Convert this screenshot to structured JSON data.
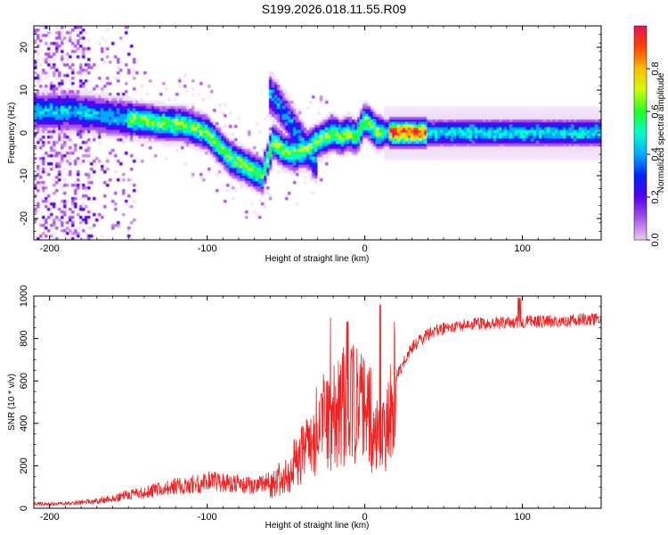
{
  "title": "S199.2026.018.11.55.R09",
  "colors": {
    "snr_line": "#ee2222",
    "axes": "#000000"
  },
  "colormap": [
    "#e6ccf2",
    "#aa55e6",
    "#5500ee",
    "#0022ff",
    "#00aaff",
    "#00ffcc",
    "#22ff22",
    "#ccff00",
    "#ffbb00",
    "#ff4400",
    "#ee1155"
  ],
  "chart_data": [
    {
      "type": "heatmap",
      "xlabel": "Height of straight line (km)",
      "ylabel": "Frequency (Hz)",
      "xlim": [
        -210,
        150
      ],
      "ylim": [
        -25,
        25
      ],
      "xticks": [
        -200,
        -100,
        0,
        100
      ],
      "yticks": [
        -20,
        -10,
        0,
        10,
        20
      ],
      "colorbar": {
        "label": "Normalized spectral amplitude",
        "range": [
          0,
          1
        ],
        "ticks": [
          "0.0",
          "0.2",
          "0.4",
          "0.6",
          "0.8"
        ]
      },
      "ridge": [
        [
          -185,
          5
        ],
        [
          -175,
          4.5
        ],
        [
          -165,
          4
        ],
        [
          -155,
          3.5
        ],
        [
          -145,
          3
        ],
        [
          -135,
          2.5
        ],
        [
          -125,
          2
        ],
        [
          -115,
          2
        ],
        [
          -108,
          1
        ],
        [
          -100,
          0
        ],
        [
          -95,
          -2
        ],
        [
          -90,
          -4
        ],
        [
          -85,
          -6
        ],
        [
          -80,
          -7
        ],
        [
          -75,
          -8
        ],
        [
          -70,
          -9
        ],
        [
          -65,
          -10
        ],
        [
          -58,
          -2
        ],
        [
          -52,
          -4
        ],
        [
          -45,
          -5
        ],
        [
          -38,
          -4
        ],
        [
          -30,
          -2
        ],
        [
          -25,
          -1
        ],
        [
          -20,
          0
        ],
        [
          -15,
          -1
        ],
        [
          -10,
          0
        ],
        [
          -5,
          -1
        ],
        [
          0,
          3
        ],
        [
          3,
          2
        ],
        [
          8,
          0
        ],
        [
          15,
          0
        ],
        [
          30,
          0
        ],
        [
          50,
          0
        ],
        [
          70,
          0
        ],
        [
          90,
          0
        ],
        [
          110,
          0
        ],
        [
          130,
          0
        ],
        [
          150,
          0
        ]
      ],
      "branch": [
        [
          -60,
          9
        ],
        [
          -55,
          7
        ],
        [
          -50,
          4
        ],
        [
          -45,
          1
        ],
        [
          -40,
          -2
        ],
        [
          -35,
          -5
        ],
        [
          -30,
          -7
        ]
      ]
    },
    {
      "type": "line",
      "xlabel": "Height of straight line (km)",
      "ylabel": "SNR (10 * v/v)",
      "xlim": [
        -210,
        150
      ],
      "ylim": [
        0,
        1000
      ],
      "xticks": [
        -200,
        -100,
        0,
        100
      ],
      "yticks": [
        0,
        200,
        400,
        600,
        800,
        1000
      ],
      "series": [
        {
          "x": [
            -210,
            -200,
            -190,
            -180,
            -170,
            -160,
            -150,
            -140,
            -130,
            -120,
            -110,
            -100,
            -90,
            -80,
            -70,
            -60,
            -50,
            -40,
            -30,
            -20,
            -10,
            0,
            10,
            20,
            30,
            40,
            50,
            60,
            70,
            80,
            90,
            100,
            110,
            120,
            130,
            140,
            150
          ],
          "y": [
            20,
            18,
            20,
            25,
            30,
            40,
            55,
            65,
            80,
            90,
            100,
            110,
            110,
            100,
            90,
            110,
            160,
            250,
            380,
            450,
            500,
            480,
            300,
            620,
            760,
            820,
            850,
            860,
            870,
            870,
            875,
            880,
            880,
            885,
            885,
            890,
            890
          ]
        }
      ]
    }
  ]
}
